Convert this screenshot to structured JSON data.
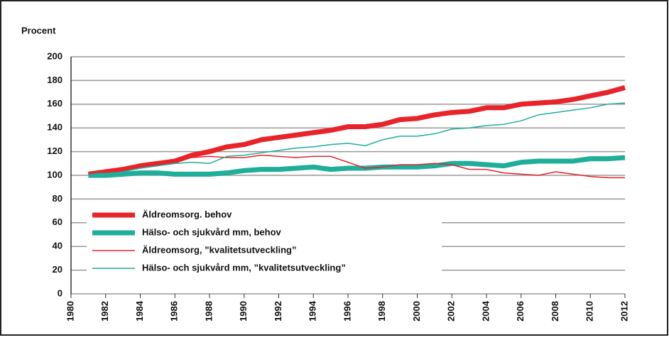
{
  "chart_data": {
    "type": "line",
    "y_label": "Procent",
    "x": [
      1981,
      1982,
      1983,
      1984,
      1985,
      1986,
      1987,
      1988,
      1989,
      1990,
      1991,
      1992,
      1993,
      1994,
      1995,
      1996,
      1997,
      1998,
      1999,
      2000,
      2001,
      2002,
      2003,
      2004,
      2005,
      2006,
      2007,
      2008,
      2009,
      2010,
      2011,
      2012
    ],
    "series": [
      {
        "name": "Äldreomsorg. behov",
        "color": "#e8232a",
        "width": 7,
        "values": [
          101,
          103,
          105,
          108,
          110,
          112,
          117,
          120,
          124,
          126,
          130,
          132,
          134,
          136,
          138,
          141,
          141,
          143,
          147,
          148,
          151,
          153,
          154,
          157,
          157,
          160,
          161,
          162,
          164,
          167,
          170,
          174
        ]
      },
      {
        "name": "Hälso- och sjukvård mm, behov",
        "color": "#1fae9a",
        "width": 7,
        "values": [
          100,
          100,
          101,
          102,
          102,
          101,
          101,
          101,
          102,
          104,
          105,
          105,
          106,
          107,
          105,
          106,
          106,
          107,
          107,
          107,
          108,
          110,
          110,
          109,
          108,
          111,
          112,
          112,
          112,
          114,
          114,
          115
        ]
      },
      {
        "name": "Äldreomsorg, ”kvalitetsutveckling”",
        "color": "#e8232a",
        "width": 1.5,
        "values": [
          101,
          104,
          106,
          109,
          111,
          113,
          115,
          116,
          115,
          115,
          117,
          116,
          115,
          116,
          116,
          111,
          106,
          107,
          109,
          109,
          110,
          109,
          105,
          105,
          102,
          101,
          100,
          103,
          101,
          99,
          98,
          98
        ]
      },
      {
        "name": "Hälso- och sjukvård mm, ”kvalitetsutveckling”",
        "color": "#1fae9a",
        "width": 1.5,
        "values": [
          100,
          101,
          103,
          106,
          108,
          110,
          111,
          110,
          116,
          117,
          119,
          121,
          123,
          124,
          126,
          127,
          125,
          130,
          133,
          133,
          135,
          139,
          140,
          142,
          143,
          146,
          151,
          153,
          155,
          157,
          160,
          161
        ]
      }
    ],
    "xlim": [
      1980,
      2012
    ],
    "xticks": [
      1980,
      1982,
      1984,
      1986,
      1988,
      1990,
      1992,
      1994,
      1996,
      1998,
      2000,
      2002,
      2004,
      2006,
      2008,
      2010,
      2012
    ],
    "ylim": [
      0,
      200
    ],
    "yticks": [
      0,
      20,
      40,
      60,
      80,
      100,
      120,
      140,
      160,
      180,
      200
    ],
    "grid": true
  }
}
